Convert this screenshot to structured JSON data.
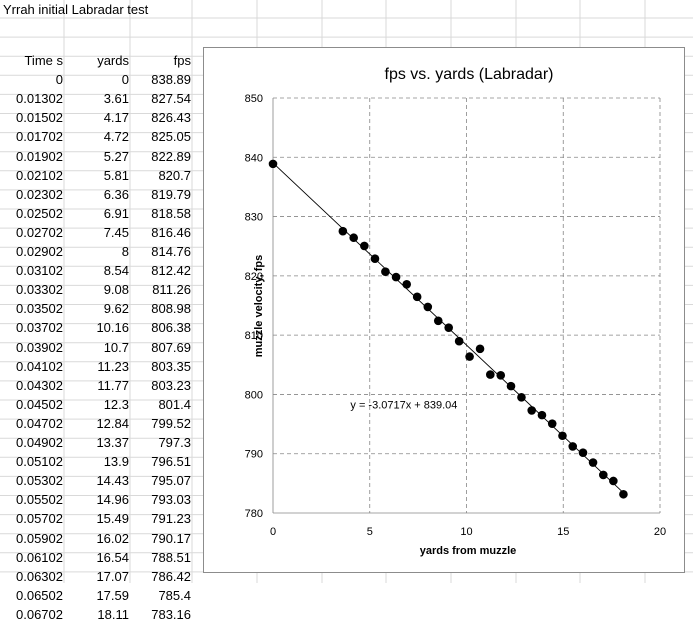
{
  "sheet": {
    "title": "Yrrah initial Labradar test",
    "headers": [
      "Time s",
      "yards",
      "fps"
    ],
    "rows": [
      [
        "0",
        "0",
        "838.89"
      ],
      [
        "0.01302",
        "3.61",
        "827.54"
      ],
      [
        "0.01502",
        "4.17",
        "826.43"
      ],
      [
        "0.01702",
        "4.72",
        "825.05"
      ],
      [
        "0.01902",
        "5.27",
        "822.89"
      ],
      [
        "0.02102",
        "5.81",
        "820.7"
      ],
      [
        "0.02302",
        "6.36",
        "819.79"
      ],
      [
        "0.02502",
        "6.91",
        "818.58"
      ],
      [
        "0.02702",
        "7.45",
        "816.46"
      ],
      [
        "0.02902",
        "8",
        "814.76"
      ],
      [
        "0.03102",
        "8.54",
        "812.42"
      ],
      [
        "0.03302",
        "9.08",
        "811.26"
      ],
      [
        "0.03502",
        "9.62",
        "808.98"
      ],
      [
        "0.03702",
        "10.16",
        "806.38"
      ],
      [
        "0.03902",
        "10.7",
        "807.69"
      ],
      [
        "0.04102",
        "11.23",
        "803.35"
      ],
      [
        "0.04302",
        "11.77",
        "803.23"
      ],
      [
        "0.04502",
        "12.3",
        "801.4"
      ],
      [
        "0.04702",
        "12.84",
        "799.52"
      ],
      [
        "0.04902",
        "13.37",
        "797.3"
      ],
      [
        "0.05102",
        "13.9",
        "796.51"
      ],
      [
        "0.05302",
        "14.43",
        "795.07"
      ],
      [
        "0.05502",
        "14.96",
        "793.03"
      ],
      [
        "0.05702",
        "15.49",
        "791.23"
      ],
      [
        "0.05902",
        "16.02",
        "790.17"
      ],
      [
        "0.06102",
        "16.54",
        "788.51"
      ],
      [
        "0.06302",
        "17.07",
        "786.42"
      ],
      [
        "0.06502",
        "17.59",
        "785.4"
      ],
      [
        "0.06702",
        "18.11",
        "783.16"
      ]
    ]
  },
  "chart_data": {
    "type": "scatter",
    "title": "fps vs. yards (Labradar)",
    "xlabel": "yards from muzzle",
    "ylabel": "muzzle velocity, fps",
    "xlim": [
      0,
      20
    ],
    "ylim": [
      780,
      850
    ],
    "xticks": [
      0,
      5,
      10,
      15,
      20
    ],
    "yticks": [
      780,
      790,
      800,
      810,
      820,
      830,
      840,
      850
    ],
    "grid": true,
    "legend": "none",
    "marker_color": "#000000",
    "trendline": {
      "slope": -3.0717,
      "intercept": 839.04,
      "label": "y = -3.0717x + 839.04"
    },
    "x": [
      0,
      3.61,
      4.17,
      4.72,
      5.27,
      5.81,
      6.36,
      6.91,
      7.45,
      8,
      8.54,
      9.08,
      9.62,
      10.16,
      10.7,
      11.23,
      11.77,
      12.3,
      12.84,
      13.37,
      13.9,
      14.43,
      14.96,
      15.49,
      16.02,
      16.54,
      17.07,
      17.59,
      18.11
    ],
    "y": [
      838.89,
      827.54,
      826.43,
      825.05,
      822.89,
      820.7,
      819.79,
      818.58,
      816.46,
      814.76,
      812.42,
      811.26,
      808.98,
      806.38,
      807.69,
      803.35,
      803.23,
      801.4,
      799.52,
      797.3,
      796.51,
      795.07,
      793.03,
      791.23,
      790.17,
      788.51,
      786.42,
      785.4,
      783.16
    ]
  }
}
